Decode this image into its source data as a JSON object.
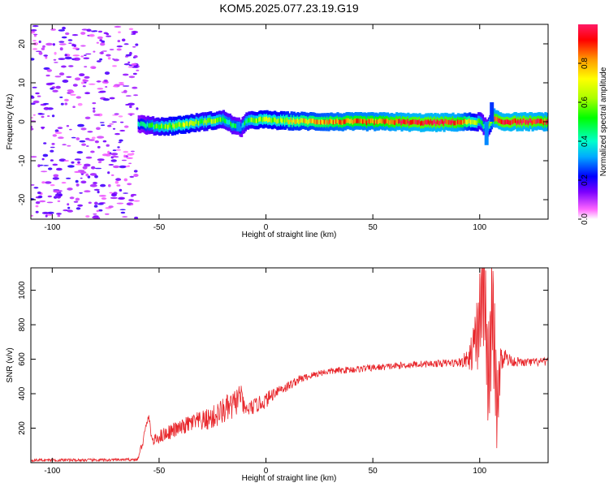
{
  "title": "KOM5.2025.077.23.19.G19",
  "colors": {
    "snr_line": "#e8252a",
    "frame": "#000000",
    "colormap": [
      "#ffffff",
      "#ff66ff",
      "#7b00ff",
      "#0000ff",
      "#00aaff",
      "#00ffcc",
      "#00ff00",
      "#aaff00",
      "#ffff00",
      "#ff9900",
      "#ff0000",
      "#ff1a66"
    ]
  },
  "chart_data": [
    {
      "type": "heatmap",
      "xlabel": "Height of straight line (km)",
      "ylabel": "Frequency (Hz)",
      "xlim": [
        -110,
        132
      ],
      "ylim": [
        -25,
        25
      ],
      "xticks": [
        -100,
        -50,
        0,
        50,
        100
      ],
      "yticks": [
        -20,
        -10,
        0,
        10,
        20
      ],
      "colorbar": {
        "label": "Normalized spectral amplitude",
        "range": [
          0,
          1
        ],
        "ticks": [
          "0.0",
          "0.2",
          "0.4",
          "0.6",
          "0.8"
        ]
      },
      "noise_region": {
        "x_range": [
          -110,
          -60
        ],
        "y_range": [
          -25,
          25
        ],
        "level": 0.15
      },
      "signal_ridge": {
        "x": [
          -60,
          -55,
          -50,
          -45,
          -40,
          -35,
          -30,
          -25,
          -20,
          -15,
          -12,
          -10,
          -5,
          0,
          5,
          10,
          20,
          30,
          40,
          50,
          60,
          70,
          80,
          90,
          100,
          103,
          106,
          110,
          120,
          132
        ],
        "frequency": [
          -0.5,
          -1,
          -1.2,
          -1.1,
          -0.8,
          -0.4,
          0,
          0.3,
          0.6,
          -1.2,
          -1.5,
          0,
          0.5,
          0.5,
          0.3,
          0.2,
          0.1,
          0,
          0,
          0,
          0,
          -0.2,
          -0.2,
          -0.1,
          0,
          -2,
          1,
          0,
          0,
          0
        ],
        "amplitude": [
          0.35,
          0.45,
          0.55,
          0.6,
          0.65,
          0.6,
          0.55,
          0.6,
          0.5,
          0.45,
          0.4,
          0.5,
          0.6,
          0.65,
          0.6,
          0.7,
          0.75,
          0.8,
          0.85,
          0.85,
          0.9,
          0.95,
          0.95,
          0.9,
          0.5,
          0.4,
          0.9,
          0.95,
          0.95,
          0.9
        ]
      }
    },
    {
      "type": "line",
      "xlabel": "Height of straight line (km)",
      "ylabel": "SNR (v/v)",
      "xlim": [
        -110,
        132
      ],
      "ylim": [
        0,
        1130
      ],
      "xticks": [
        -100,
        -50,
        0,
        50,
        100
      ],
      "yticks": [
        200,
        400,
        600,
        800,
        1000
      ],
      "series": [
        {
          "x": [
            -110,
            -100,
            -80,
            -60,
            -57,
            -55,
            -53,
            -50,
            -45,
            -40,
            -35,
            -30,
            -25,
            -20,
            -15,
            -12,
            -10,
            -5,
            0,
            5,
            10,
            15,
            20,
            25,
            30,
            40,
            50,
            60,
            70,
            80,
            90,
            95,
            98,
            100,
            102,
            104,
            106,
            108,
            110,
            115,
            120,
            132
          ],
          "y": [
            15,
            15,
            15,
            18,
            150,
            270,
            120,
            150,
            180,
            200,
            230,
            240,
            260,
            300,
            330,
            400,
            300,
            330,
            360,
            420,
            440,
            480,
            500,
            520,
            530,
            540,
            550,
            560,
            570,
            575,
            580,
            600,
            700,
            850,
            1100,
            400,
            950,
            300,
            620,
            590,
            580,
            585
          ],
          "amplitude": [
            8,
            8,
            8,
            8,
            40,
            20,
            30,
            40,
            45,
            45,
            55,
            60,
            70,
            80,
            90,
            70,
            50,
            45,
            45,
            35,
            30,
            25,
            20,
            20,
            20,
            20,
            20,
            20,
            20,
            20,
            25,
            60,
            180,
            350,
            450,
            400,
            400,
            300,
            80,
            30,
            25,
            25
          ]
        }
      ]
    }
  ]
}
